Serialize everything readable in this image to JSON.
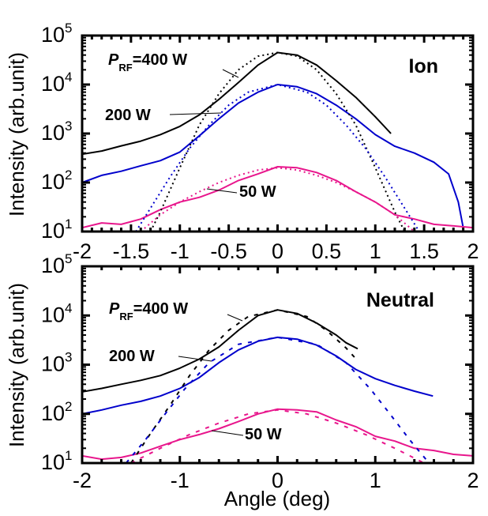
{
  "chart_data": [
    {
      "type": "line",
      "panel": "Ion",
      "title": "",
      "panel_label": "Ion",
      "xlabel": "",
      "ylabel": "Intensity (arb.unit)",
      "yscale": "log",
      "xlim": [
        -2,
        2
      ],
      "ylim": [
        10,
        100000
      ],
      "x_ticks": [
        -2,
        -1.5,
        -1,
        -0.5,
        0,
        0.5,
        1,
        1.5,
        2
      ],
      "x_tick_labels": [
        "-2",
        "-1.5",
        "-1",
        "-0.5",
        "0",
        "0.5",
        "1",
        "1.5",
        "2"
      ],
      "y_ticks": [
        10,
        100,
        1000,
        10000,
        100000
      ],
      "y_tick_labels": [
        {
          "base": "10",
          "exp": "1"
        },
        {
          "base": "10",
          "exp": "2"
        },
        {
          "base": "10",
          "exp": "3"
        },
        {
          "base": "10",
          "exp": "4"
        },
        {
          "base": "10",
          "exp": "5"
        }
      ],
      "grid": false,
      "annotations": [
        {
          "text_main": "P",
          "text_sub": "RF",
          "text_rest": "=400 W",
          "series": "400 W",
          "points_to": [
            -0.35,
            17000
          ]
        },
        {
          "text_main": "200 W",
          "series": "200 W",
          "points_to": [
            -0.75,
            2300
          ]
        },
        {
          "text_main": "50 W",
          "series": "50 W",
          "points_to": [
            -0.3,
            52
          ]
        }
      ],
      "series": [
        {
          "name": "400 W",
          "color": "#000000",
          "style": "solid",
          "x": [
            -2,
            -1.8,
            -1.6,
            -1.4,
            -1.2,
            -1.0,
            -0.8,
            -0.6,
            -0.4,
            -0.2,
            0,
            0.2,
            0.4,
            0.6,
            0.8,
            1.0,
            1.16
          ],
          "y": [
            380,
            440,
            560,
            700,
            950,
            1400,
            2400,
            5000,
            11000,
            25000,
            45000,
            40000,
            25000,
            12000,
            5500,
            2200,
            1000
          ]
        },
        {
          "name": "200 W",
          "color": "#0000CC",
          "style": "solid",
          "x": [
            -2,
            -1.8,
            -1.6,
            -1.4,
            -1.2,
            -1.0,
            -0.8,
            -0.6,
            -0.4,
            -0.2,
            0,
            0.2,
            0.4,
            0.6,
            0.8,
            1.0,
            1.2,
            1.4,
            1.6,
            1.75,
            1.85,
            1.9
          ],
          "y": [
            100,
            140,
            170,
            220,
            280,
            420,
            900,
            2000,
            4200,
            7000,
            10000,
            9000,
            6500,
            3800,
            2000,
            950,
            550,
            400,
            260,
            150,
            40,
            12
          ]
        },
        {
          "name": "50 W",
          "color": "#E8168C",
          "style": "solid",
          "x": [
            -2,
            -1.8,
            -1.6,
            -1.4,
            -1.2,
            -1.0,
            -0.8,
            -0.6,
            -0.4,
            -0.2,
            0,
            0.2,
            0.4,
            0.6,
            0.8,
            1.0,
            1.2,
            1.4,
            1.6,
            1.8,
            2.0
          ],
          "y": [
            12,
            15,
            14,
            18,
            28,
            40,
            50,
            70,
            110,
            150,
            210,
            200,
            160,
            110,
            65,
            40,
            22,
            18,
            14,
            13,
            12
          ]
        },
        {
          "name": "400 W fit",
          "color": "#000000",
          "style": "dotted",
          "x": [
            -1.3,
            -1.2,
            -1.0,
            -0.8,
            -0.6,
            -0.4,
            -0.2,
            0,
            0.2,
            0.4,
            0.6,
            0.8,
            1.0,
            1.2,
            1.3
          ],
          "y": [
            10,
            25,
            200,
            1500,
            6500,
            20000,
            38000,
            45000,
            38000,
            20000,
            6500,
            1500,
            200,
            25,
            10
          ]
        },
        {
          "name": "200 W fit",
          "color": "#0000CC",
          "style": "dotted",
          "x": [
            -1.45,
            -1.3,
            -1.1,
            -0.9,
            -0.7,
            -0.5,
            -0.3,
            0,
            0.3,
            0.5,
            0.7,
            0.9,
            1.1,
            1.3,
            1.45
          ],
          "y": [
            10,
            30,
            130,
            500,
            1500,
            3800,
            7000,
            10000,
            7000,
            3800,
            1500,
            500,
            130,
            30,
            10
          ]
        },
        {
          "name": "50 W fit",
          "color": "#E8168C",
          "style": "dotted",
          "x": [
            -1.4,
            -1.2,
            -1.0,
            -0.8,
            -0.6,
            -0.4,
            -0.2,
            0,
            0.2,
            0.4,
            0.6,
            0.8,
            1.0,
            1.2,
            1.4
          ],
          "y": [
            10,
            22,
            40,
            65,
            100,
            140,
            180,
            200,
            180,
            140,
            100,
            65,
            40,
            22,
            10
          ]
        }
      ]
    },
    {
      "type": "line",
      "panel": "Neutral",
      "title": "",
      "panel_label": "Neutral",
      "xlabel": "Angle (deg)",
      "ylabel": "Intensity (arb.unit)",
      "yscale": "log",
      "xlim": [
        -2,
        2
      ],
      "ylim": [
        10,
        100000
      ],
      "x_ticks": [
        -2,
        -1,
        0,
        1,
        2
      ],
      "x_tick_labels": [
        "-2",
        "-1",
        "0",
        "1",
        "2"
      ],
      "y_ticks": [
        10,
        100,
        1000,
        10000,
        100000
      ],
      "y_tick_labels": [
        {
          "base": "10",
          "exp": "1"
        },
        {
          "base": "10",
          "exp": "2"
        },
        {
          "base": "10",
          "exp": "3"
        },
        {
          "base": "10",
          "exp": "4"
        },
        {
          "base": "10",
          "exp": "5"
        }
      ],
      "grid": false,
      "annotations": [
        {
          "text_main": "P",
          "text_sub": "RF",
          "text_rest": "=400 W",
          "series": "400 W",
          "points_to": [
            -0.45,
            8000
          ]
        },
        {
          "text_main": "200 W",
          "series": "200 W",
          "points_to": [
            -0.75,
            700
          ]
        },
        {
          "text_main": "50 W",
          "series": "50 W",
          "points_to": [
            -0.4,
            50
          ]
        }
      ],
      "series": [
        {
          "name": "400 W",
          "color": "#000000",
          "style": "solid",
          "x": [
            -2,
            -1.8,
            -1.6,
            -1.4,
            -1.2,
            -1.0,
            -0.8,
            -0.6,
            -0.4,
            -0.2,
            0,
            0.2,
            0.4,
            0.6,
            0.7,
            0.82
          ],
          "y": [
            280,
            330,
            400,
            480,
            600,
            850,
            1300,
            2300,
            5000,
            10000,
            13000,
            11000,
            7000,
            4000,
            2800,
            2100
          ]
        },
        {
          "name": "200 W",
          "color": "#0000CC",
          "style": "solid",
          "x": [
            -2,
            -1.8,
            -1.6,
            -1.4,
            -1.2,
            -1.0,
            -0.8,
            -0.6,
            -0.4,
            -0.2,
            0,
            0.2,
            0.4,
            0.6,
            0.8,
            1.0,
            1.2,
            1.4,
            1.59
          ],
          "y": [
            100,
            120,
            150,
            180,
            230,
            330,
            550,
            1100,
            2000,
            3000,
            3600,
            3300,
            2500,
            1500,
            800,
            520,
            380,
            290,
            230
          ]
        },
        {
          "name": "50 W",
          "color": "#E8168C",
          "style": "solid",
          "x": [
            -2,
            -1.8,
            -1.6,
            -1.4,
            -1.2,
            -1.0,
            -0.8,
            -0.6,
            -0.4,
            -0.2,
            0,
            0.2,
            0.4,
            0.6,
            0.8,
            1.0,
            1.2,
            1.4,
            1.6,
            1.8,
            2.0
          ],
          "y": [
            14,
            12,
            13,
            16,
            22,
            30,
            38,
            50,
            70,
            100,
            125,
            120,
            110,
            75,
            55,
            35,
            28,
            20,
            18,
            15,
            14
          ]
        },
        {
          "name": "400 W fit",
          "color": "#000000",
          "style": "dashed",
          "x": [
            -1.5,
            -1.3,
            -1.1,
            -0.9,
            -0.7,
            -0.5,
            -0.3,
            0,
            0.3,
            0.5,
            0.7,
            0.82
          ],
          "y": [
            10,
            40,
            150,
            600,
            2000,
            5000,
            9500,
            13000,
            9500,
            5000,
            2200,
            1200
          ]
        },
        {
          "name": "200 W fit",
          "color": "#0000CC",
          "style": "dashed",
          "x": [
            -1.55,
            -1.35,
            -1.15,
            -0.95,
            -0.7,
            -0.4,
            0,
            0.4,
            0.7,
            0.95,
            1.15,
            1.35,
            1.55
          ],
          "y": [
            10,
            30,
            100,
            320,
            1100,
            2600,
            3600,
            2600,
            1100,
            320,
            100,
            30,
            10
          ]
        },
        {
          "name": "50 W fit",
          "color": "#E8168C",
          "style": "dashed",
          "x": [
            -1.5,
            -1.2,
            -0.9,
            -0.6,
            -0.3,
            0,
            0.3,
            0.6,
            0.9,
            1.2,
            1.5
          ],
          "y": [
            10,
            20,
            38,
            65,
            100,
            120,
            100,
            65,
            38,
            20,
            10
          ]
        }
      ]
    }
  ]
}
